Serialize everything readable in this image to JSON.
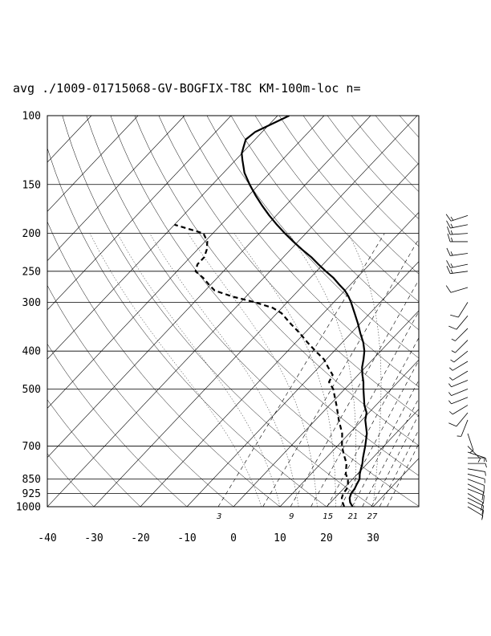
{
  "chart_data": {
    "type": "line",
    "title": "avg ./1009-01715068-GV-BOGFIX-T8C KM-100m-loc n=",
    "xlabel": "",
    "ylabel": "",
    "x_axis": {
      "label": "",
      "range": [
        -40,
        40
      ],
      "ticks": [
        -40,
        -30,
        -20,
        -10,
        0,
        10,
        20,
        30
      ]
    },
    "y_axis": {
      "label": "",
      "scale": "log-pressure",
      "range": [
        1000,
        100
      ],
      "ticks": [
        100,
        150,
        200,
        250,
        300,
        400,
        500,
        700,
        850,
        925,
        1000
      ]
    },
    "grid": true,
    "skew": true,
    "mixing_ratio_labels": [
      "3",
      "9",
      "15",
      "21",
      "27"
    ],
    "series": [
      {
        "style": "solid",
        "points": [
          [
            1000,
            25.6
          ],
          [
            975,
            24.2
          ],
          [
            950,
            23.2
          ],
          [
            925,
            22.6
          ],
          [
            900,
            22.4
          ],
          [
            875,
            21.9
          ],
          [
            850,
            21.5
          ],
          [
            825,
            20.5
          ],
          [
            800,
            19.7
          ],
          [
            775,
            18.9
          ],
          [
            750,
            17.9
          ],
          [
            700,
            16.0
          ],
          [
            650,
            13.8
          ],
          [
            600,
            10.7
          ],
          [
            575,
            9.5
          ],
          [
            550,
            7.5
          ],
          [
            525,
            5.8
          ],
          [
            500,
            4.0
          ],
          [
            480,
            2.6
          ],
          [
            460,
            0.9
          ],
          [
            440,
            -0.7
          ],
          [
            420,
            -2.0
          ],
          [
            400,
            -3.5
          ],
          [
            380,
            -5.5
          ],
          [
            360,
            -8.0
          ],
          [
            340,
            -10.5
          ],
          [
            320,
            -13.3
          ],
          [
            300,
            -16.3
          ],
          [
            290,
            -18.0
          ],
          [
            280,
            -20.0
          ],
          [
            270,
            -22.5
          ],
          [
            260,
            -25.0
          ],
          [
            250,
            -28.0
          ],
          [
            240,
            -31.0
          ],
          [
            230,
            -34.0
          ],
          [
            220,
            -37.5
          ],
          [
            210,
            -41.0
          ],
          [
            200,
            -44.5
          ],
          [
            190,
            -48.0
          ],
          [
            180,
            -51.5
          ],
          [
            170,
            -55.0
          ],
          [
            160,
            -58.5
          ],
          [
            150,
            -62.0
          ],
          [
            140,
            -65.5
          ],
          [
            130,
            -68.5
          ],
          [
            125,
            -70.0
          ],
          [
            120,
            -71.0
          ],
          [
            115,
            -72.0
          ],
          [
            110,
            -71.5
          ],
          [
            105,
            -69.5
          ],
          [
            100,
            -67.5
          ]
        ]
      },
      {
        "style": "dashed",
        "points": [
          [
            1000,
            23.8
          ],
          [
            975,
            22.6
          ],
          [
            950,
            21.5
          ],
          [
            925,
            20.9
          ],
          [
            900,
            20.7
          ],
          [
            875,
            20.0
          ],
          [
            850,
            19.0
          ],
          [
            825,
            17.5
          ],
          [
            800,
            16.5
          ],
          [
            775,
            15.5
          ],
          [
            750,
            14.0
          ],
          [
            725,
            12.5
          ],
          [
            700,
            11.0
          ],
          [
            650,
            8.5
          ],
          [
            600,
            5.0
          ],
          [
            550,
            1.5
          ],
          [
            500,
            -2.5
          ],
          [
            480,
            -4.8
          ],
          [
            460,
            -5.5
          ],
          [
            440,
            -8.0
          ],
          [
            420,
            -10.5
          ],
          [
            400,
            -14.0
          ],
          [
            380,
            -17.5
          ],
          [
            360,
            -21.0
          ],
          [
            340,
            -25.0
          ],
          [
            320,
            -29.0
          ],
          [
            310,
            -32.0
          ],
          [
            300,
            -37.0
          ],
          [
            290,
            -43.0
          ],
          [
            280,
            -48.0
          ],
          [
            270,
            -50.5
          ],
          [
            260,
            -53.0
          ],
          [
            250,
            -56.0
          ],
          [
            240,
            -57.0
          ],
          [
            230,
            -57.0
          ],
          [
            220,
            -58.0
          ],
          [
            210,
            -59.5
          ],
          [
            200,
            -62.0
          ],
          [
            195,
            -66.0
          ],
          [
            190,
            -70.0
          ]
        ]
      }
    ],
    "wind_barbs": [
      {
        "p": 1000,
        "u": -5,
        "v": 3
      },
      {
        "p": 975,
        "u": -8,
        "v": 4
      },
      {
        "p": 950,
        "u": -10,
        "v": 5
      },
      {
        "p": 925,
        "u": -10,
        "v": 6
      },
      {
        "p": 900,
        "u": -10,
        "v": 4
      },
      {
        "p": 875,
        "u": -8,
        "v": 4
      },
      {
        "p": 850,
        "u": -8,
        "v": 3
      },
      {
        "p": 825,
        "u": -7,
        "v": 2
      },
      {
        "p": 800,
        "u": -6,
        "v": 1
      },
      {
        "p": 775,
        "u": -5,
        "v": 0
      },
      {
        "p": 750,
        "u": -4,
        "v": 0
      },
      {
        "p": 725,
        "u": -3,
        "v": 1
      },
      {
        "p": 700,
        "u": -2,
        "v": 2
      },
      {
        "p": 650,
        "u": -1,
        "v": 3
      },
      {
        "p": 600,
        "u": 2,
        "v": 5
      },
      {
        "p": 575,
        "u": 5,
        "v": 6
      },
      {
        "p": 550,
        "u": 5,
        "v": 3
      },
      {
        "p": 525,
        "u": 5,
        "v": 2
      },
      {
        "p": 500,
        "u": 5,
        "v": 2
      },
      {
        "p": 475,
        "u": 5,
        "v": 2
      },
      {
        "p": 450,
        "u": 5,
        "v": 3
      },
      {
        "p": 425,
        "u": 5,
        "v": 3
      },
      {
        "p": 400,
        "u": 5,
        "v": 4
      },
      {
        "p": 375,
        "u": 5,
        "v": 5
      },
      {
        "p": 350,
        "u": 5,
        "v": 5
      },
      {
        "p": 325,
        "u": 5,
        "v": 6
      },
      {
        "p": 300,
        "u": 5,
        "v": 8
      },
      {
        "p": 275,
        "u": 10,
        "v": 3
      },
      {
        "p": 250,
        "u": 15,
        "v": 2
      },
      {
        "p": 240,
        "u": 15,
        "v": 3
      },
      {
        "p": 225,
        "u": 15,
        "v": 2
      },
      {
        "p": 210,
        "u": 15,
        "v": 0
      },
      {
        "p": 200,
        "u": 15,
        "v": 1
      },
      {
        "p": 190,
        "u": 15,
        "v": 3
      },
      {
        "p": 180,
        "u": 15,
        "v": 5
      }
    ]
  }
}
